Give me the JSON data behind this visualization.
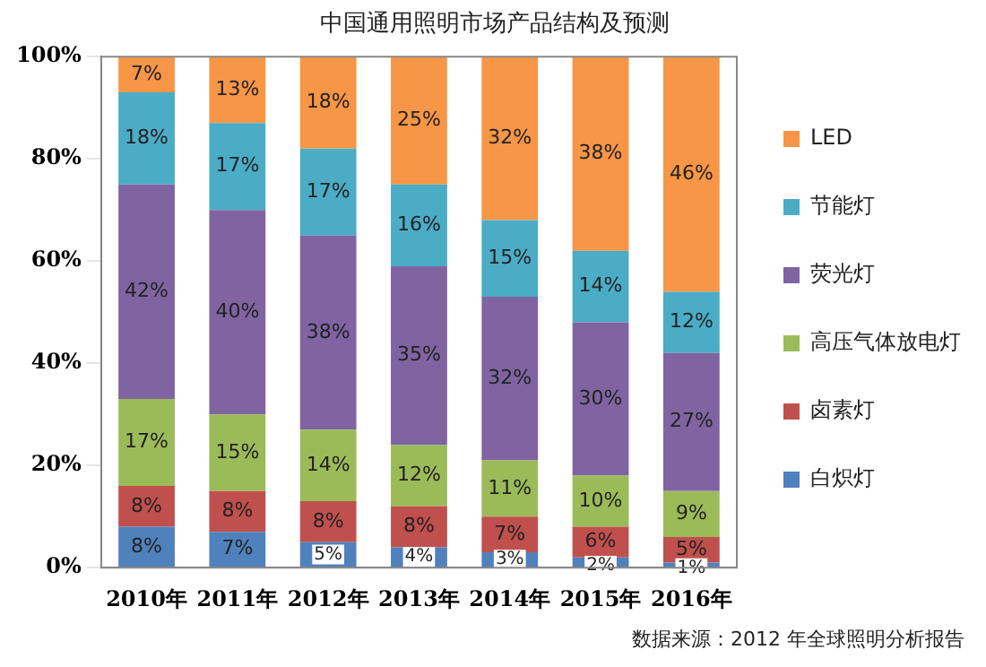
{
  "chart_data": {
    "type": "bar",
    "title": "中国通用照明市场产品结构及预测",
    "stacked": true,
    "categories": [
      "2010年",
      "2011年",
      "2012年",
      "2013年",
      "2014年",
      "2015年",
      "2016年"
    ],
    "series": [
      {
        "name": "白炽灯",
        "color": "#4f81bd",
        "values": [
          8,
          7,
          5,
          4,
          3,
          2,
          1
        ],
        "value_labels": [
          "8%",
          "7%",
          "5%",
          "4%",
          "3%",
          "2%",
          "1%"
        ]
      },
      {
        "name": "卤素灯",
        "color": "#c0504d",
        "values": [
          8,
          8,
          8,
          8,
          7,
          6,
          5
        ],
        "value_labels": [
          "8%",
          "8%",
          "8%",
          "8%",
          "7%",
          "6%",
          "5%"
        ]
      },
      {
        "name": "高压气体放电灯",
        "color": "#9bbb59",
        "values": [
          17,
          15,
          14,
          12,
          11,
          10,
          9
        ],
        "value_labels": [
          "17%",
          "15%",
          "14%",
          "12%",
          "11%",
          "10%",
          "9%"
        ]
      },
      {
        "name": "荧光灯",
        "color": "#8064a2",
        "values": [
          42,
          40,
          38,
          35,
          32,
          30,
          27
        ],
        "value_labels": [
          "42%",
          "40%",
          "38%",
          "35%",
          "32%",
          "30%",
          "27%"
        ]
      },
      {
        "name": "节能灯",
        "color": "#4bacc6",
        "values": [
          18,
          17,
          17,
          16,
          15,
          14,
          12
        ],
        "value_labels": [
          "18%",
          "17%",
          "17%",
          "16%",
          "15%",
          "14%",
          "12%"
        ]
      },
      {
        "name": "LED",
        "color": "#f79646",
        "values": [
          7,
          13,
          18,
          25,
          32,
          38,
          46
        ],
        "value_labels": [
          "7%",
          "13%",
          "18%",
          "25%",
          "32%",
          "38%",
          "46%"
        ]
      }
    ],
    "ylim": [
      0,
      100
    ],
    "yticks": [
      {
        "value": 0,
        "label": "0%"
      },
      {
        "value": 20,
        "label": "20%"
      },
      {
        "value": 40,
        "label": "40%"
      },
      {
        "value": 60,
        "label": "60%"
      },
      {
        "value": 80,
        "label": "80%"
      },
      {
        "value": 100,
        "label": "100%"
      }
    ],
    "grid": false,
    "legend": "right",
    "annotations": [
      "数据来源：2012 年全球照明分析报告"
    ]
  }
}
